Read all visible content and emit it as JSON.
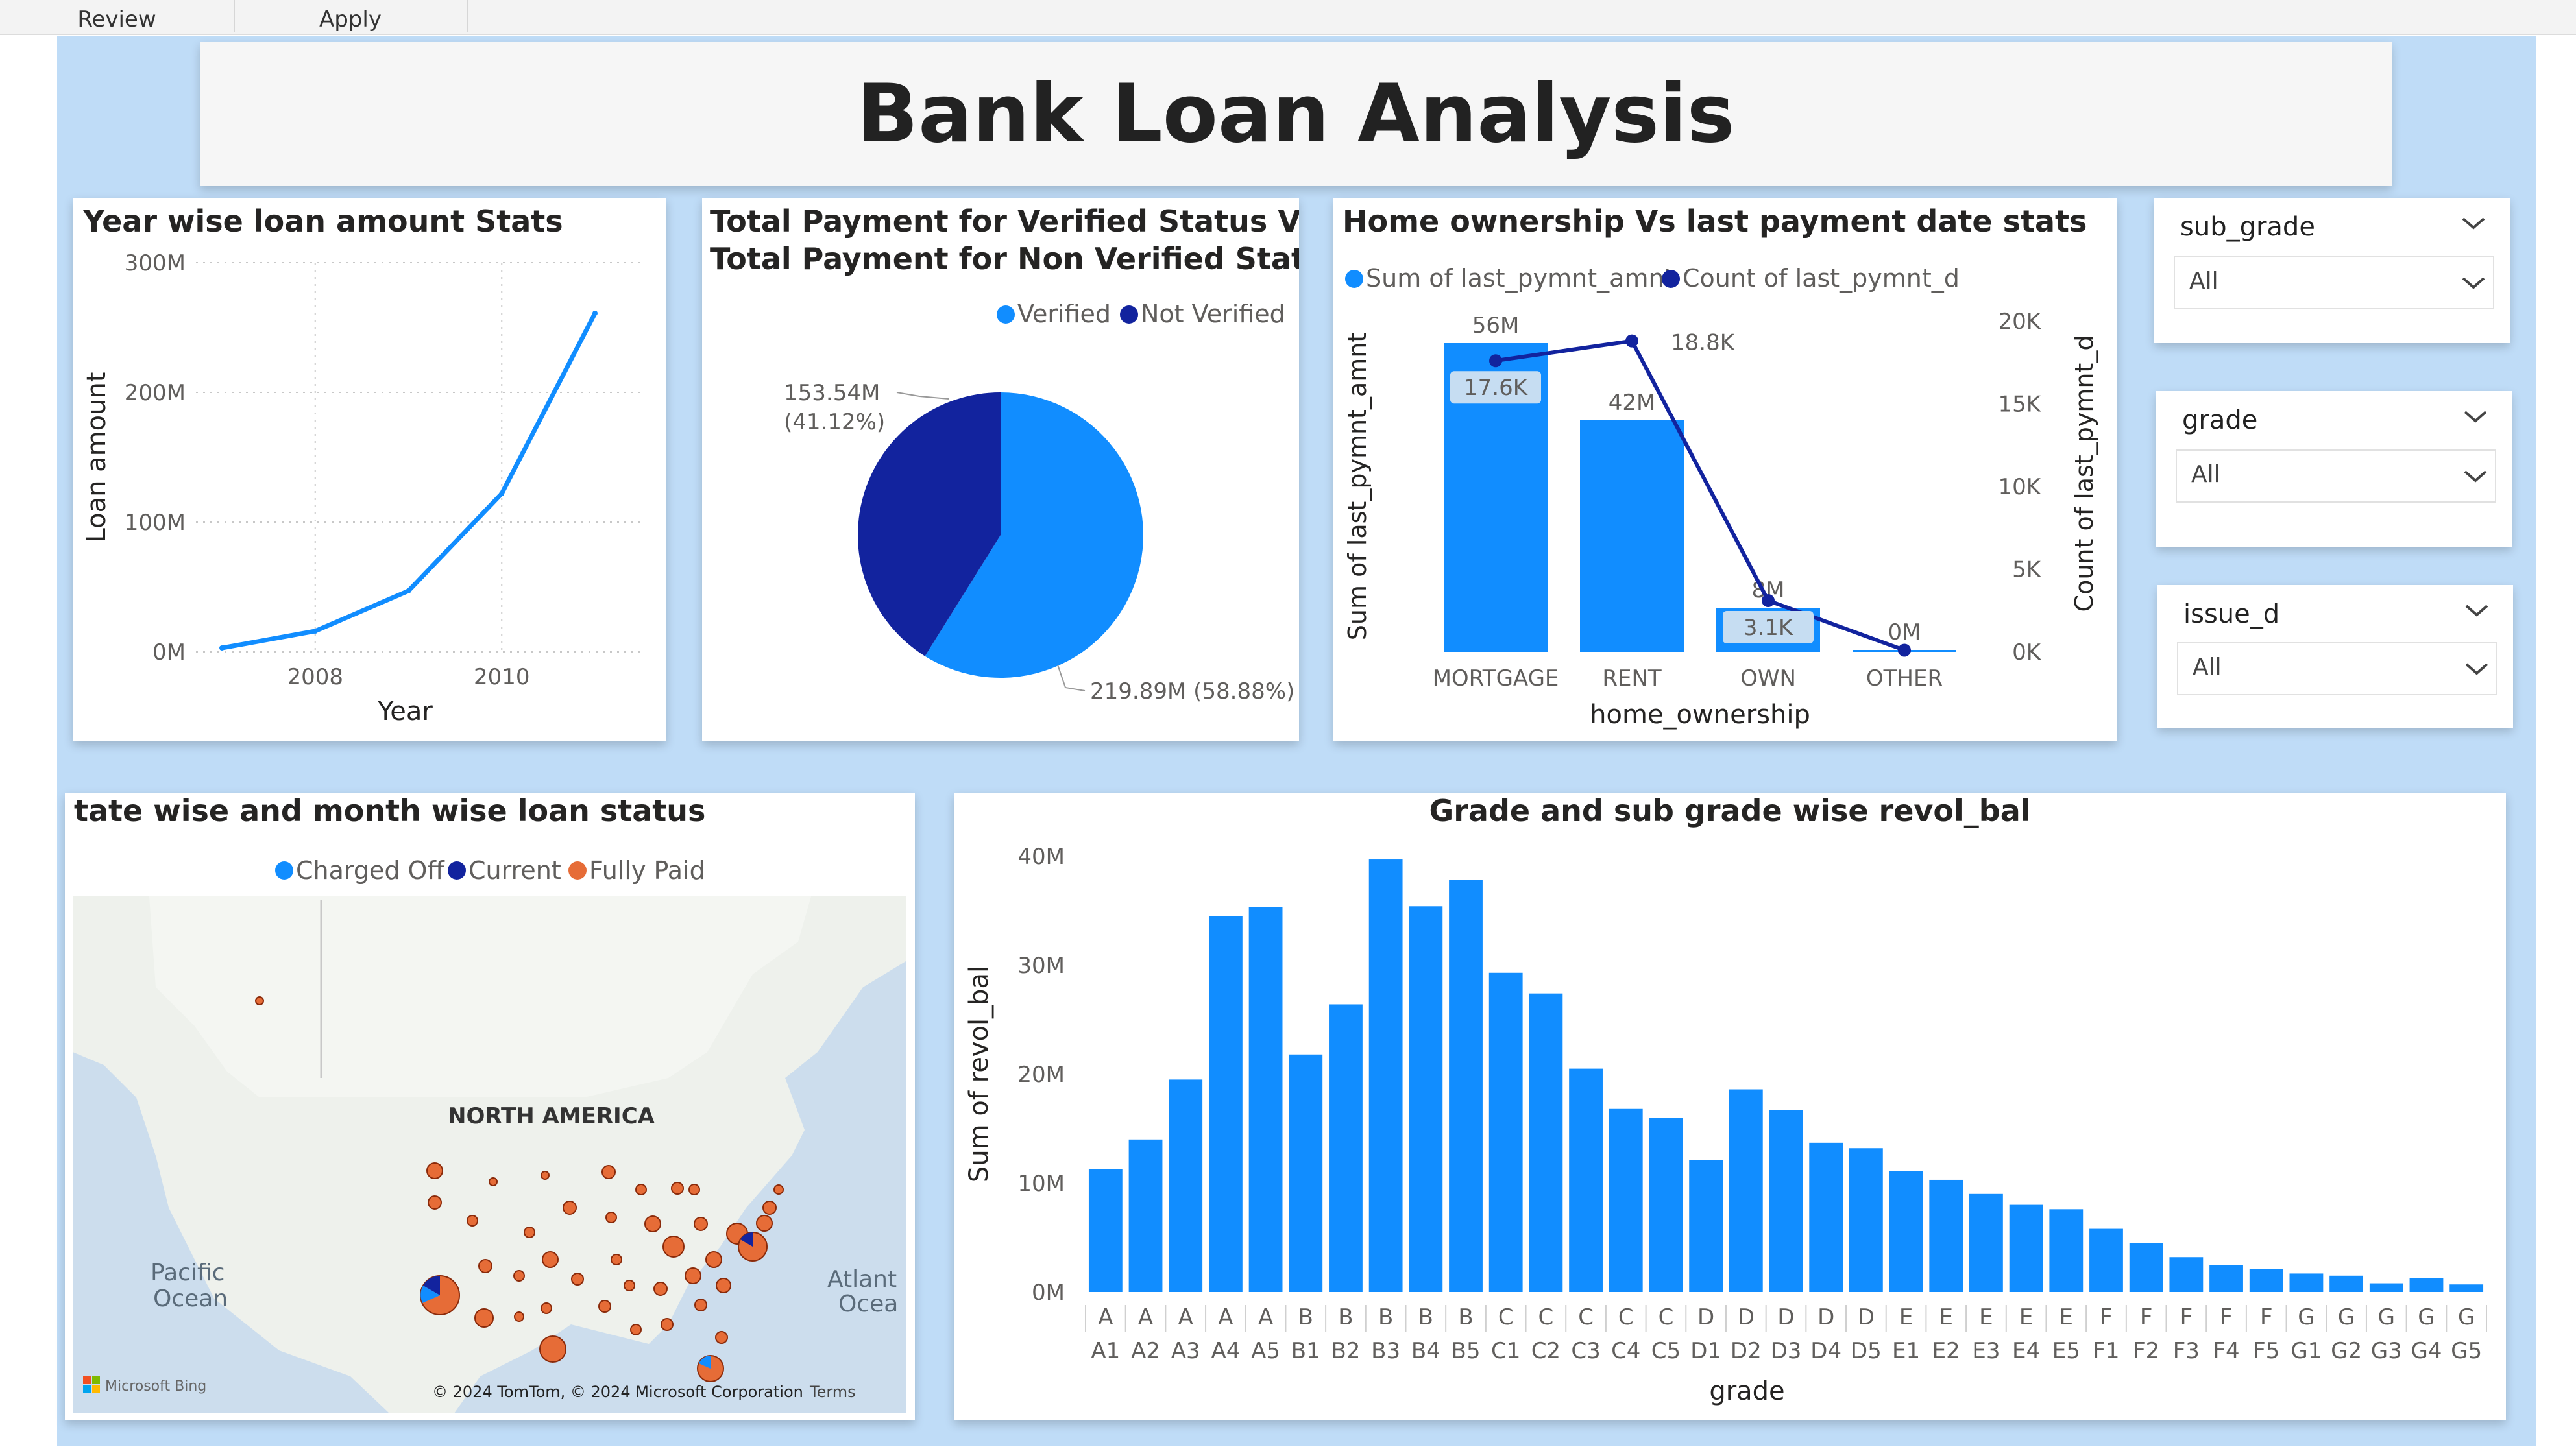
{
  "menu": {
    "tabs": [
      "Review",
      "Apply"
    ]
  },
  "header": {
    "title": "Bank Loan Analysis"
  },
  "colors": {
    "bright_blue": "#118DFF",
    "dark_blue": "#12239E",
    "orange": "#E66C37",
    "canvas_bg": "#BFDCF7"
  },
  "slicers": [
    {
      "title": "sub_grade",
      "value": "All"
    },
    {
      "title": "grade",
      "value": "All"
    },
    {
      "title": "issue_d",
      "value": "All"
    }
  ],
  "map": {
    "title": "tate wise and month wise loan status",
    "legend": [
      "Charged Off",
      "Current",
      "Fully Paid"
    ],
    "labels": {
      "continent": "NORTH AMERICA",
      "pacific": [
        "Pacific",
        "Ocean"
      ],
      "atlantic": [
        "Atlant",
        "Ocea"
      ]
    },
    "attribution": "© 2024 TomTom, © 2024 Microsoft Corporation",
    "terms": "Terms",
    "bing": "Microsoft Bing"
  },
  "chart_data": [
    {
      "id": "year_stats",
      "type": "line",
      "title": "Year wise loan amount Stats",
      "xlabel": "Year",
      "ylabel": "Loan amount",
      "x": [
        2007,
        2008,
        2009,
        2010,
        2011
      ],
      "values": [
        3,
        16,
        47,
        122,
        261
      ],
      "unit": "M",
      "ylim": [
        0,
        300
      ],
      "yticks": [
        "0M",
        "100M",
        "200M",
        "300M"
      ],
      "xticks": [
        "2008",
        "2010"
      ]
    },
    {
      "id": "verified_pie",
      "type": "pie",
      "title_lines": [
        "Total Payment for Verified Status Vs",
        "Total Payment for Non Verified Status"
      ],
      "legend": [
        "Verified",
        "Not Verified"
      ],
      "slices": [
        {
          "name": "Verified",
          "value": 219.89,
          "pct": 58.88,
          "label": "219.89M (58.88%)"
        },
        {
          "name": "Not Verified",
          "value": 153.54,
          "pct": 41.12,
          "label_lines": [
            "153.54M",
            "(41.12%)"
          ]
        }
      ]
    },
    {
      "id": "home_ownership",
      "type": "bar+line",
      "title": "Home ownership Vs last payment date stats",
      "legend": [
        "Sum of last_pymnt_amnt",
        "Count of last_pymnt_d"
      ],
      "categories": [
        "MORTGAGE",
        "RENT",
        "OWN",
        "OTHER"
      ],
      "bar_values": [
        56,
        42,
        8,
        0
      ],
      "bar_labels": [
        "56M",
        "42M",
        "8M",
        "0M"
      ],
      "bar_ylim": [
        0,
        60
      ],
      "line_values": [
        17.6,
        18.8,
        3.1,
        0.1
      ],
      "line_labels": [
        "17.6K",
        "18.8K",
        "3.1K",
        ""
      ],
      "line_ylim": [
        0,
        20
      ],
      "right_ticks": [
        "0K",
        "5K",
        "10K",
        "15K",
        "20K"
      ],
      "xlabel": "home_ownership",
      "ylabel_left": "Sum of last_pymnt_amnt",
      "ylabel_right": "Count of last_pymnt_d"
    },
    {
      "id": "revol_bal",
      "type": "bar",
      "title": "Grade and sub grade wise revol_bal",
      "xlabel": "grade",
      "ylabel": "Sum of revol_bal",
      "ylim": [
        0,
        40
      ],
      "yticks": [
        "0M",
        "10M",
        "20M",
        "30M",
        "40M"
      ],
      "categories": [
        "A1",
        "A2",
        "A3",
        "A4",
        "A5",
        "B1",
        "B2",
        "B3",
        "B4",
        "B5",
        "C1",
        "C2",
        "C3",
        "C4",
        "C5",
        "D1",
        "D2",
        "D3",
        "D4",
        "D5",
        "E1",
        "E2",
        "E3",
        "E4",
        "E5",
        "F1",
        "F2",
        "F3",
        "F4",
        "F5",
        "G1",
        "G2",
        "G3",
        "G4",
        "G5"
      ],
      "grades": [
        "A",
        "A",
        "A",
        "A",
        "A",
        "B",
        "B",
        "B",
        "B",
        "B",
        "C",
        "C",
        "C",
        "C",
        "C",
        "D",
        "D",
        "D",
        "D",
        "D",
        "E",
        "E",
        "E",
        "E",
        "E",
        "F",
        "F",
        "F",
        "F",
        "F",
        "G",
        "G",
        "G",
        "G",
        "G"
      ],
      "values": [
        11.3,
        14.0,
        19.5,
        34.5,
        35.3,
        21.8,
        26.4,
        39.7,
        35.4,
        37.8,
        29.3,
        27.4,
        20.5,
        16.8,
        16.0,
        12.1,
        18.6,
        16.7,
        13.7,
        13.2,
        11.1,
        10.3,
        9.0,
        8.0,
        7.6,
        5.8,
        4.5,
        3.2,
        2.5,
        2.1,
        1.7,
        1.5,
        0.8,
        1.3,
        0.7
      ]
    }
  ]
}
